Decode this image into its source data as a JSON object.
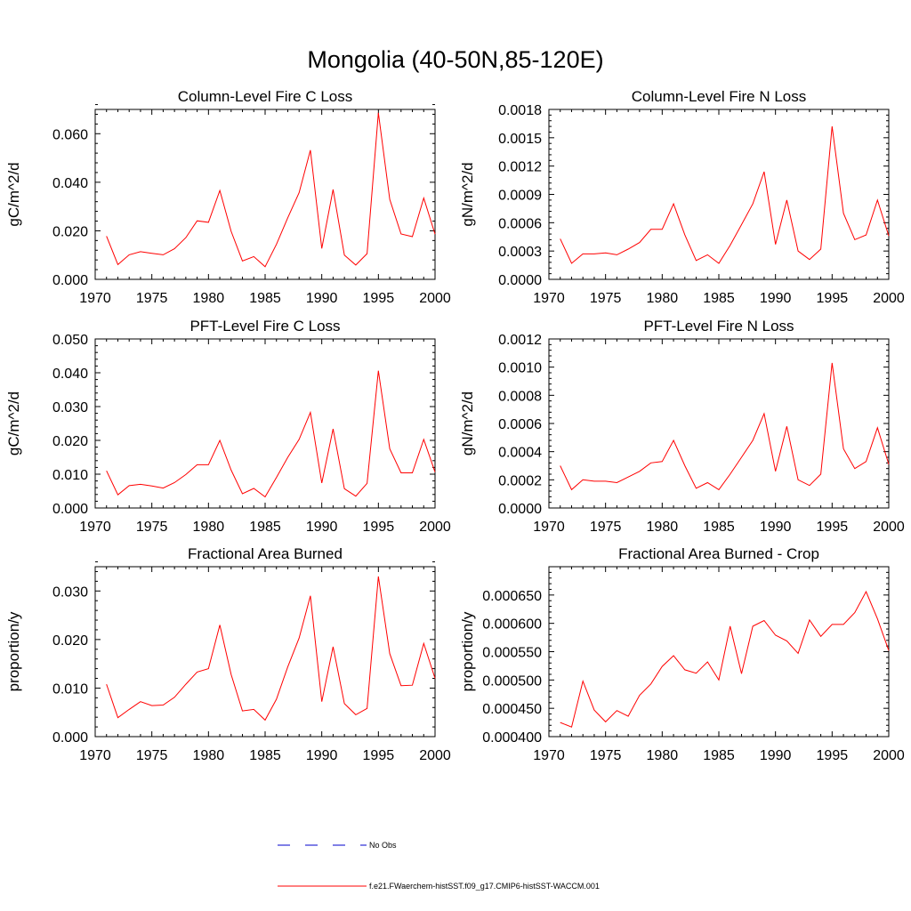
{
  "figure": {
    "title": "Mongolia (40-50N,85-120E)"
  },
  "legend": {
    "obs_label": "No Obs",
    "obs_color": "#0000cc",
    "model_label": "f.e21.FWaerchem-histSST.f09_g17.CMIP6-histSST-WACCM.001",
    "model_color": "#ff0000"
  },
  "chart_data": [
    {
      "type": "line",
      "title": "Column-Level Fire C Loss",
      "xlabel": "",
      "ylabel": "gC/m^2/d",
      "xlim": [
        1970,
        2000
      ],
      "ylim": [
        0,
        0.07
      ],
      "yticks": [
        0,
        0.02,
        0.04,
        0.06
      ],
      "ytick_labels": [
        "0.000",
        "0.020",
        "0.040",
        "0.060"
      ],
      "xticks": [
        1970,
        1975,
        1980,
        1985,
        1990,
        1995,
        2000
      ],
      "x": [
        1971,
        1972,
        1973,
        1974,
        1975,
        1976,
        1977,
        1978,
        1979,
        1980,
        1981,
        1982,
        1983,
        1984,
        1985,
        1986,
        1987,
        1988,
        1989,
        1990,
        1991,
        1992,
        1993,
        1994,
        1995,
        1996,
        1997,
        1998,
        1999,
        2000
      ],
      "series": [
        {
          "values": [
            0.0178,
            0.0061,
            0.0101,
            0.0114,
            0.0107,
            0.0101,
            0.0126,
            0.0172,
            0.0241,
            0.0235,
            0.0366,
            0.0198,
            0.0076,
            0.0094,
            0.0052,
            0.0144,
            0.0254,
            0.0357,
            0.0532,
            0.0127,
            0.037,
            0.01,
            0.0059,
            0.0106,
            0.0686,
            0.0329,
            0.0187,
            0.0176,
            0.0335,
            0.0186
          ]
        }
      ]
    },
    {
      "type": "line",
      "title": "Column-Level Fire N Loss",
      "xlabel": "",
      "ylabel": "gN/m^2/d",
      "xlim": [
        1970,
        2000
      ],
      "ylim": [
        0,
        0.0018
      ],
      "yticks": [
        0,
        0.0003,
        0.0006,
        0.0009,
        0.0012,
        0.0015,
        0.0018
      ],
      "ytick_labels": [
        "0.0000",
        "0.0003",
        "0.0006",
        "0.0009",
        "0.0012",
        "0.0015",
        "0.0018"
      ],
      "xticks": [
        1970,
        1975,
        1980,
        1985,
        1990,
        1995,
        2000
      ],
      "x": [
        1971,
        1972,
        1973,
        1974,
        1975,
        1976,
        1977,
        1978,
        1979,
        1980,
        1981,
        1982,
        1983,
        1984,
        1985,
        1986,
        1987,
        1988,
        1989,
        1990,
        1991,
        1992,
        1993,
        1994,
        1995,
        1996,
        1997,
        1998,
        1999,
        2000
      ],
      "series": [
        {
          "values": [
            0.00043,
            0.00017,
            0.00027,
            0.00027,
            0.00028,
            0.00026,
            0.00032,
            0.00039,
            0.00053,
            0.00053,
            0.0008,
            0.00047,
            0.0002,
            0.00026,
            0.00017,
            0.00036,
            0.00058,
            0.0008,
            0.00114,
            0.00037,
            0.00084,
            0.0003,
            0.00021,
            0.00032,
            0.00162,
            0.0007,
            0.00042,
            0.00047,
            0.00084,
            0.00046
          ]
        }
      ]
    },
    {
      "type": "line",
      "title": "PFT-Level Fire C Loss",
      "xlabel": "",
      "ylabel": "gC/m^2/d",
      "xlim": [
        1970,
        2000
      ],
      "ylim": [
        0,
        0.05
      ],
      "yticks": [
        0,
        0.01,
        0.02,
        0.03,
        0.04,
        0.05
      ],
      "ytick_labels": [
        "0.000",
        "0.010",
        "0.020",
        "0.030",
        "0.040",
        "0.050"
      ],
      "xticks": [
        1970,
        1975,
        1980,
        1985,
        1990,
        1995,
        2000
      ],
      "x": [
        1971,
        1972,
        1973,
        1974,
        1975,
        1976,
        1977,
        1978,
        1979,
        1980,
        1981,
        1982,
        1983,
        1984,
        1985,
        1986,
        1987,
        1988,
        1989,
        1990,
        1991,
        1992,
        1993,
        1994,
        1995,
        1996,
        1997,
        1998,
        1999,
        2000
      ],
      "series": [
        {
          "values": [
            0.011,
            0.0039,
            0.0066,
            0.007,
            0.0065,
            0.0059,
            0.0075,
            0.0099,
            0.0128,
            0.0128,
            0.02,
            0.0112,
            0.0042,
            0.0058,
            0.0033,
            0.009,
            0.015,
            0.0203,
            0.0283,
            0.0074,
            0.0234,
            0.0057,
            0.0035,
            0.0073,
            0.0406,
            0.0175,
            0.0104,
            0.0104,
            0.0203,
            0.0106
          ]
        }
      ]
    },
    {
      "type": "line",
      "title": "PFT-Level Fire N Loss",
      "xlabel": "",
      "ylabel": "gN/m^2/d",
      "xlim": [
        1970,
        2000
      ],
      "ylim": [
        0,
        0.0012
      ],
      "yticks": [
        0,
        0.0002,
        0.0004,
        0.0006,
        0.0008,
        0.001,
        0.0012
      ],
      "ytick_labels": [
        "0.0000",
        "0.0002",
        "0.0004",
        "0.0006",
        "0.0008",
        "0.0010",
        "0.0012"
      ],
      "xticks": [
        1970,
        1975,
        1980,
        1985,
        1990,
        1995,
        2000
      ],
      "x": [
        1971,
        1972,
        1973,
        1974,
        1975,
        1976,
        1977,
        1978,
        1979,
        1980,
        1981,
        1982,
        1983,
        1984,
        1985,
        1986,
        1987,
        1988,
        1989,
        1990,
        1991,
        1992,
        1993,
        1994,
        1995,
        1996,
        1997,
        1998,
        1999,
        2000
      ],
      "series": [
        {
          "values": [
            0.0003,
            0.00013,
            0.0002,
            0.00019,
            0.00019,
            0.00018,
            0.00022,
            0.00026,
            0.00032,
            0.00033,
            0.00048,
            0.0003,
            0.00014,
            0.00018,
            0.00013,
            0.00024,
            0.00036,
            0.00048,
            0.00067,
            0.00026,
            0.00058,
            0.0002,
            0.00016,
            0.00024,
            0.00103,
            0.00042,
            0.00028,
            0.00033,
            0.00057,
            0.00031
          ]
        }
      ]
    },
    {
      "type": "line",
      "title": "Fractional Area Burned",
      "xlabel": "",
      "ylabel": "proportion/y",
      "xlim": [
        1970,
        2000
      ],
      "ylim": [
        0,
        0.035
      ],
      "yticks": [
        0,
        0.01,
        0.02,
        0.03
      ],
      "ytick_labels": [
        "0.000",
        "0.010",
        "0.020",
        "0.030"
      ],
      "xticks": [
        1970,
        1975,
        1980,
        1985,
        1990,
        1995,
        2000
      ],
      "x": [
        1971,
        1972,
        1973,
        1974,
        1975,
        1976,
        1977,
        1978,
        1979,
        1980,
        1981,
        1982,
        1983,
        1984,
        1985,
        1986,
        1987,
        1988,
        1989,
        1990,
        1991,
        1992,
        1993,
        1994,
        1995,
        1996,
        1997,
        1998,
        1999,
        2000
      ],
      "series": [
        {
          "values": [
            0.0108,
            0.0039,
            0.0056,
            0.0072,
            0.0064,
            0.0065,
            0.0081,
            0.0108,
            0.0133,
            0.014,
            0.023,
            0.0128,
            0.0053,
            0.0056,
            0.0034,
            0.0077,
            0.0144,
            0.0203,
            0.029,
            0.0072,
            0.0185,
            0.0068,
            0.0045,
            0.0058,
            0.033,
            0.0171,
            0.0105,
            0.0106,
            0.0192,
            0.012
          ]
        }
      ]
    },
    {
      "type": "line",
      "title": "Fractional Area Burned - Crop",
      "xlabel": "",
      "ylabel": "proportion/y",
      "xlim": [
        1970,
        2000
      ],
      "ylim": [
        0.0004,
        0.0007
      ],
      "yticks": [
        0.0004,
        0.00045,
        0.0005,
        0.00055,
        0.0006,
        0.00065
      ],
      "ytick_labels": [
        "0.000400",
        "0.000450",
        "0.000500",
        "0.000550",
        "0.000600",
        "0.000650"
      ],
      "xticks": [
        1970,
        1975,
        1980,
        1985,
        1990,
        1995,
        2000
      ],
      "x": [
        1971,
        1972,
        1973,
        1974,
        1975,
        1976,
        1977,
        1978,
        1979,
        1980,
        1981,
        1982,
        1983,
        1984,
        1985,
        1986,
        1987,
        1988,
        1989,
        1990,
        1991,
        1992,
        1993,
        1994,
        1995,
        1996,
        1997,
        1998,
        1999,
        2000
      ],
      "series": [
        {
          "values": [
            0.000425,
            0.000417,
            0.000498,
            0.000447,
            0.000426,
            0.000446,
            0.000436,
            0.000473,
            0.000493,
            0.000524,
            0.000543,
            0.000518,
            0.000512,
            0.000532,
            0.0005,
            0.000595,
            0.000511,
            0.000595,
            0.000605,
            0.000579,
            0.000569,
            0.000547,
            0.000606,
            0.000577,
            0.000598,
            0.000598,
            0.000619,
            0.000656,
            0.000608,
            0.000552
          ]
        }
      ]
    }
  ]
}
